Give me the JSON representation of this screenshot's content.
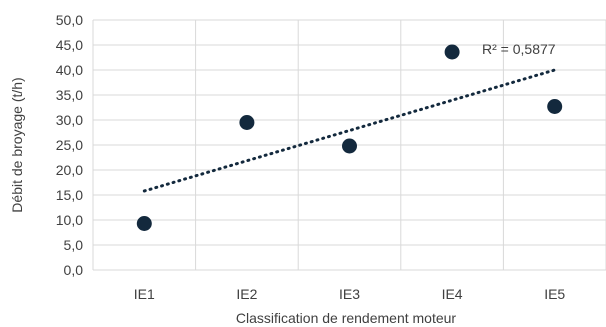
{
  "chart_data": {
    "type": "scatter",
    "categories": [
      "IE1",
      "IE2",
      "IE3",
      "IE4",
      "IE5"
    ],
    "series": [
      {
        "values": [
          9.3,
          29.5,
          24.8,
          43.6,
          32.7
        ]
      }
    ],
    "trendline": {
      "type": "linear",
      "start": 15.8,
      "end": 40.0,
      "label": "R² = 0,5877"
    },
    "xlabel": "Classification de rendement moteur",
    "ylabel": "Débit de broyage (t/h)",
    "ylim": [
      0,
      50
    ],
    "yticks": [
      "0,0",
      "5,0",
      "10,0",
      "15,0",
      "20,0",
      "25,0",
      "30,0",
      "35,0",
      "40,0",
      "45,0",
      "50,0"
    ],
    "grid": true,
    "colors": {
      "point": "#13293d",
      "trendline": "#13293d",
      "grid": "#d9d9d9",
      "text": "#404040"
    }
  }
}
